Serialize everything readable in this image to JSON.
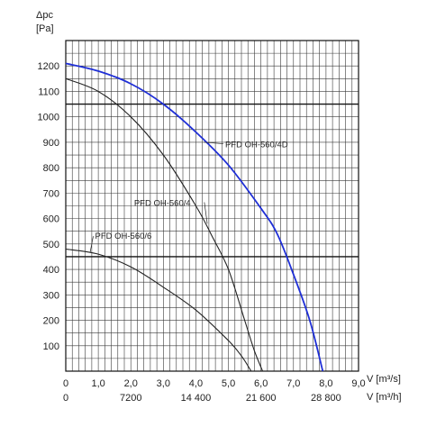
{
  "chart_data": {
    "type": "line",
    "ylabel_line1": "Δpc",
    "ylabel_line2": "[Pa]",
    "xlabel_flow_s": "V [m³/s]",
    "xlabel_flow_h": "V [m³/h]",
    "xlim": [
      0,
      9
    ],
    "ylim": [
      0,
      1300
    ],
    "grid": true,
    "x_ticks": [
      "0",
      "1,0",
      "2,0",
      "3,0",
      "4,0",
      "5,0",
      "6,0",
      "7,0",
      "8,0",
      "9,0"
    ],
    "x_ticks_secondary": [
      {
        "x": 0,
        "label": "0"
      },
      {
        "x": 2,
        "label": "7200"
      },
      {
        "x": 4,
        "label": "14 400"
      },
      {
        "x": 6,
        "label": "21 600"
      },
      {
        "x": 8,
        "label": "28 800"
      }
    ],
    "y_ticks": [
      100,
      200,
      300,
      400,
      500,
      600,
      700,
      800,
      900,
      1000,
      1100,
      1200
    ],
    "series": [
      {
        "name": "PFD OH-560/4D",
        "color": "#1f2fd6",
        "label_at": [
          4.9,
          880
        ],
        "points": [
          [
            0,
            1210
          ],
          [
            1,
            1180
          ],
          [
            2,
            1130
          ],
          [
            3,
            1050
          ],
          [
            4,
            940
          ],
          [
            5,
            810
          ],
          [
            6,
            640
          ],
          [
            6.5,
            540
          ],
          [
            7,
            380
          ],
          [
            7.5,
            200
          ],
          [
            7.9,
            0
          ]
        ]
      },
      {
        "name": "PFD OH-560/4",
        "color": "#222222",
        "label_at": [
          2.1,
          650
        ],
        "points": [
          [
            0,
            1150
          ],
          [
            1,
            1100
          ],
          [
            2,
            1000
          ],
          [
            3,
            850
          ],
          [
            4,
            650
          ],
          [
            4.5,
            530
          ],
          [
            5,
            400
          ],
          [
            5.5,
            200
          ],
          [
            5.8,
            80
          ],
          [
            6.05,
            0
          ]
        ]
      },
      {
        "name": "PFD OH-560/6",
        "color": "#222222",
        "label_at": [
          0.9,
          520
        ],
        "points": [
          [
            0,
            480
          ],
          [
            1,
            460
          ],
          [
            2,
            410
          ],
          [
            3,
            330
          ],
          [
            4,
            240
          ],
          [
            5,
            120
          ],
          [
            5.4,
            60
          ],
          [
            5.7,
            0
          ]
        ]
      }
    ]
  }
}
